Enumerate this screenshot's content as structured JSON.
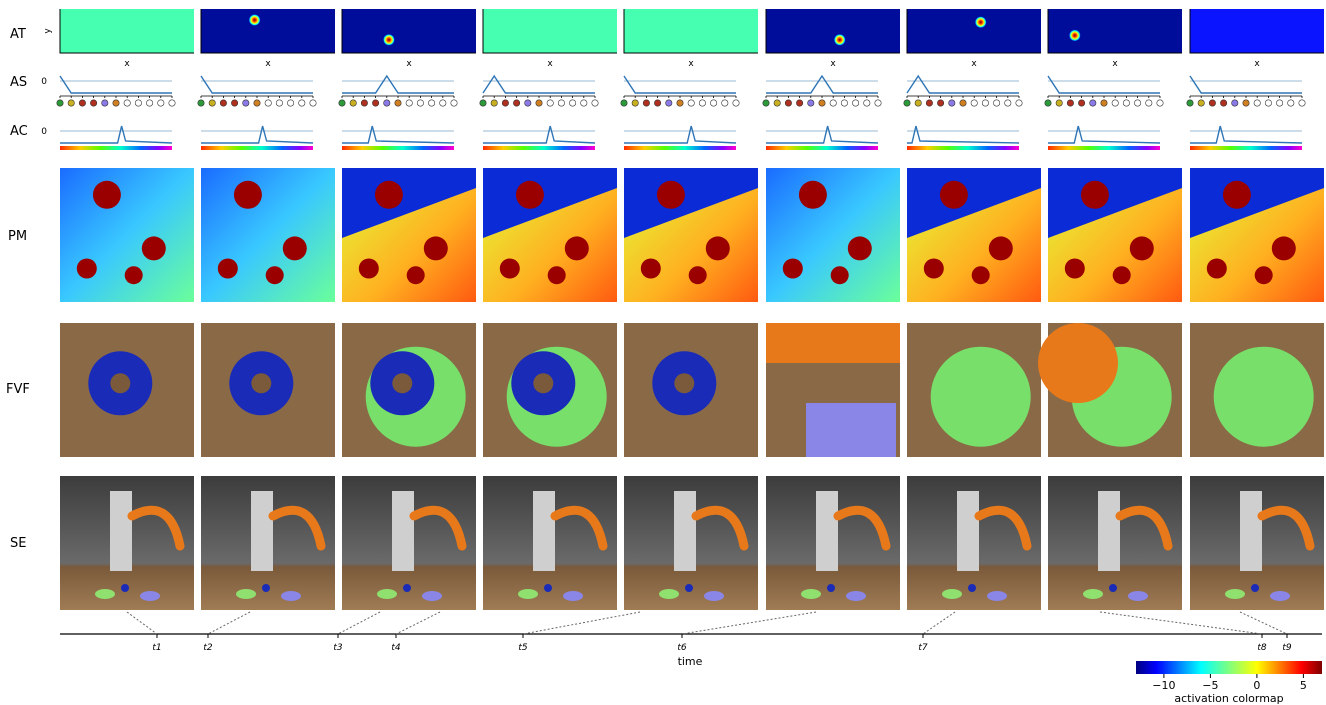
{
  "row_labels": [
    "AT",
    "AS",
    "AC",
    "PM",
    "FVF",
    "SE"
  ],
  "at_axes": {
    "xlabel": "x",
    "ylabel": "y"
  },
  "zero_label": "0",
  "time_axis": {
    "label": "time",
    "ticks": [
      "t1",
      "t2",
      "t3",
      "t4",
      "t5",
      "t6",
      "t7",
      "t8",
      "t9"
    ]
  },
  "colorbar": {
    "label": "activation colormap",
    "ticks": [
      "−10",
      "−5",
      "0",
      "5"
    ],
    "range": [
      -13,
      7
    ]
  },
  "colors": {
    "jet_low": "#00007f",
    "jet_mid": "#7fff7f",
    "jet_high": "#7f0000",
    "line": "#2e75b6",
    "table_wood": "#8a6a46",
    "robot_orange": "#e8791b"
  },
  "panels": [
    {
      "at_uniform": true,
      "at_blob": null,
      "as_peak": 0,
      "ac_peak": 0.55
    },
    {
      "at_uniform": false,
      "at_blob": [
        0.4,
        0.25
      ],
      "as_peak": 0,
      "ac_peak": 0.55
    },
    {
      "at_uniform": false,
      "at_blob": [
        0.35,
        0.7
      ],
      "as_peak": 4,
      "ac_peak": 0.27
    },
    {
      "at_uniform": true,
      "at_blob": null,
      "as_peak": 1,
      "ac_peak": 0.6
    },
    {
      "at_uniform": true,
      "at_blob": null,
      "as_peak": 0,
      "ac_peak": 0.6
    },
    {
      "at_uniform": false,
      "at_blob": [
        0.55,
        0.7
      ],
      "as_peak": 5,
      "ac_peak": 0.55
    },
    {
      "at_uniform": false,
      "at_blob": [
        0.55,
        0.3
      ],
      "as_peak": 1,
      "ac_peak": 0.08
    },
    {
      "at_uniform": false,
      "at_blob": [
        0.2,
        0.6
      ],
      "as_peak": 0,
      "ac_peak": 0.27
    },
    {
      "at_uniform": false,
      "at_blob": null,
      "as_peak": 0,
      "ac_peak": 0.27
    }
  ]
}
